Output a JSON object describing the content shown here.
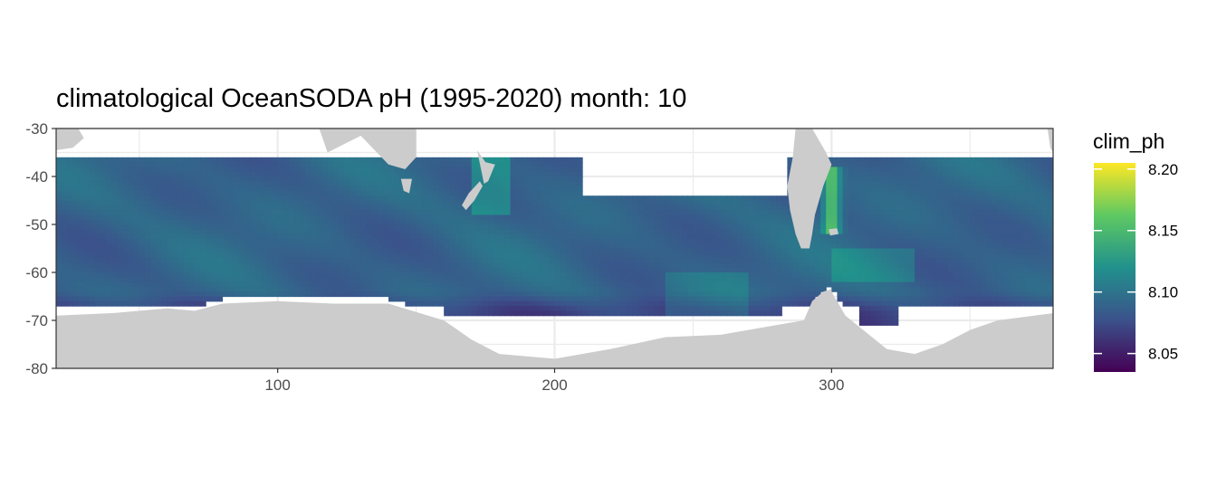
{
  "chart_data": {
    "type": "heatmap",
    "title": "climatological OceanSODA pH (1995-2020) month: 10",
    "xlabel": "",
    "ylabel": "",
    "xlim": [
      20,
      380
    ],
    "ylim": [
      -80,
      -30
    ],
    "x_ticks": [
      100,
      200,
      300
    ],
    "y_ticks": [
      -30,
      -40,
      -50,
      -60,
      -70,
      -80
    ],
    "grid": true,
    "colors": {
      "land": "#cccccc",
      "panel_border": "#333333",
      "grid": "#ebebeb",
      "viridis": [
        "#440154",
        "#3b528b",
        "#21918c",
        "#5ec962",
        "#fde725"
      ]
    },
    "legend": {
      "title": "clim_ph",
      "placement": "right",
      "range": [
        8.035,
        8.205
      ],
      "ticks": [
        8.05,
        8.1,
        8.15,
        8.2
      ],
      "tick_labels": [
        "8.05",
        "8.10",
        "8.15",
        "8.20"
      ]
    },
    "data_coverage": {
      "north_edge_lat": -36,
      "white_gap_lon": [
        210,
        285
      ],
      "white_gap_north_edge_lat": -44,
      "typical_ph": 8.09
    }
  }
}
